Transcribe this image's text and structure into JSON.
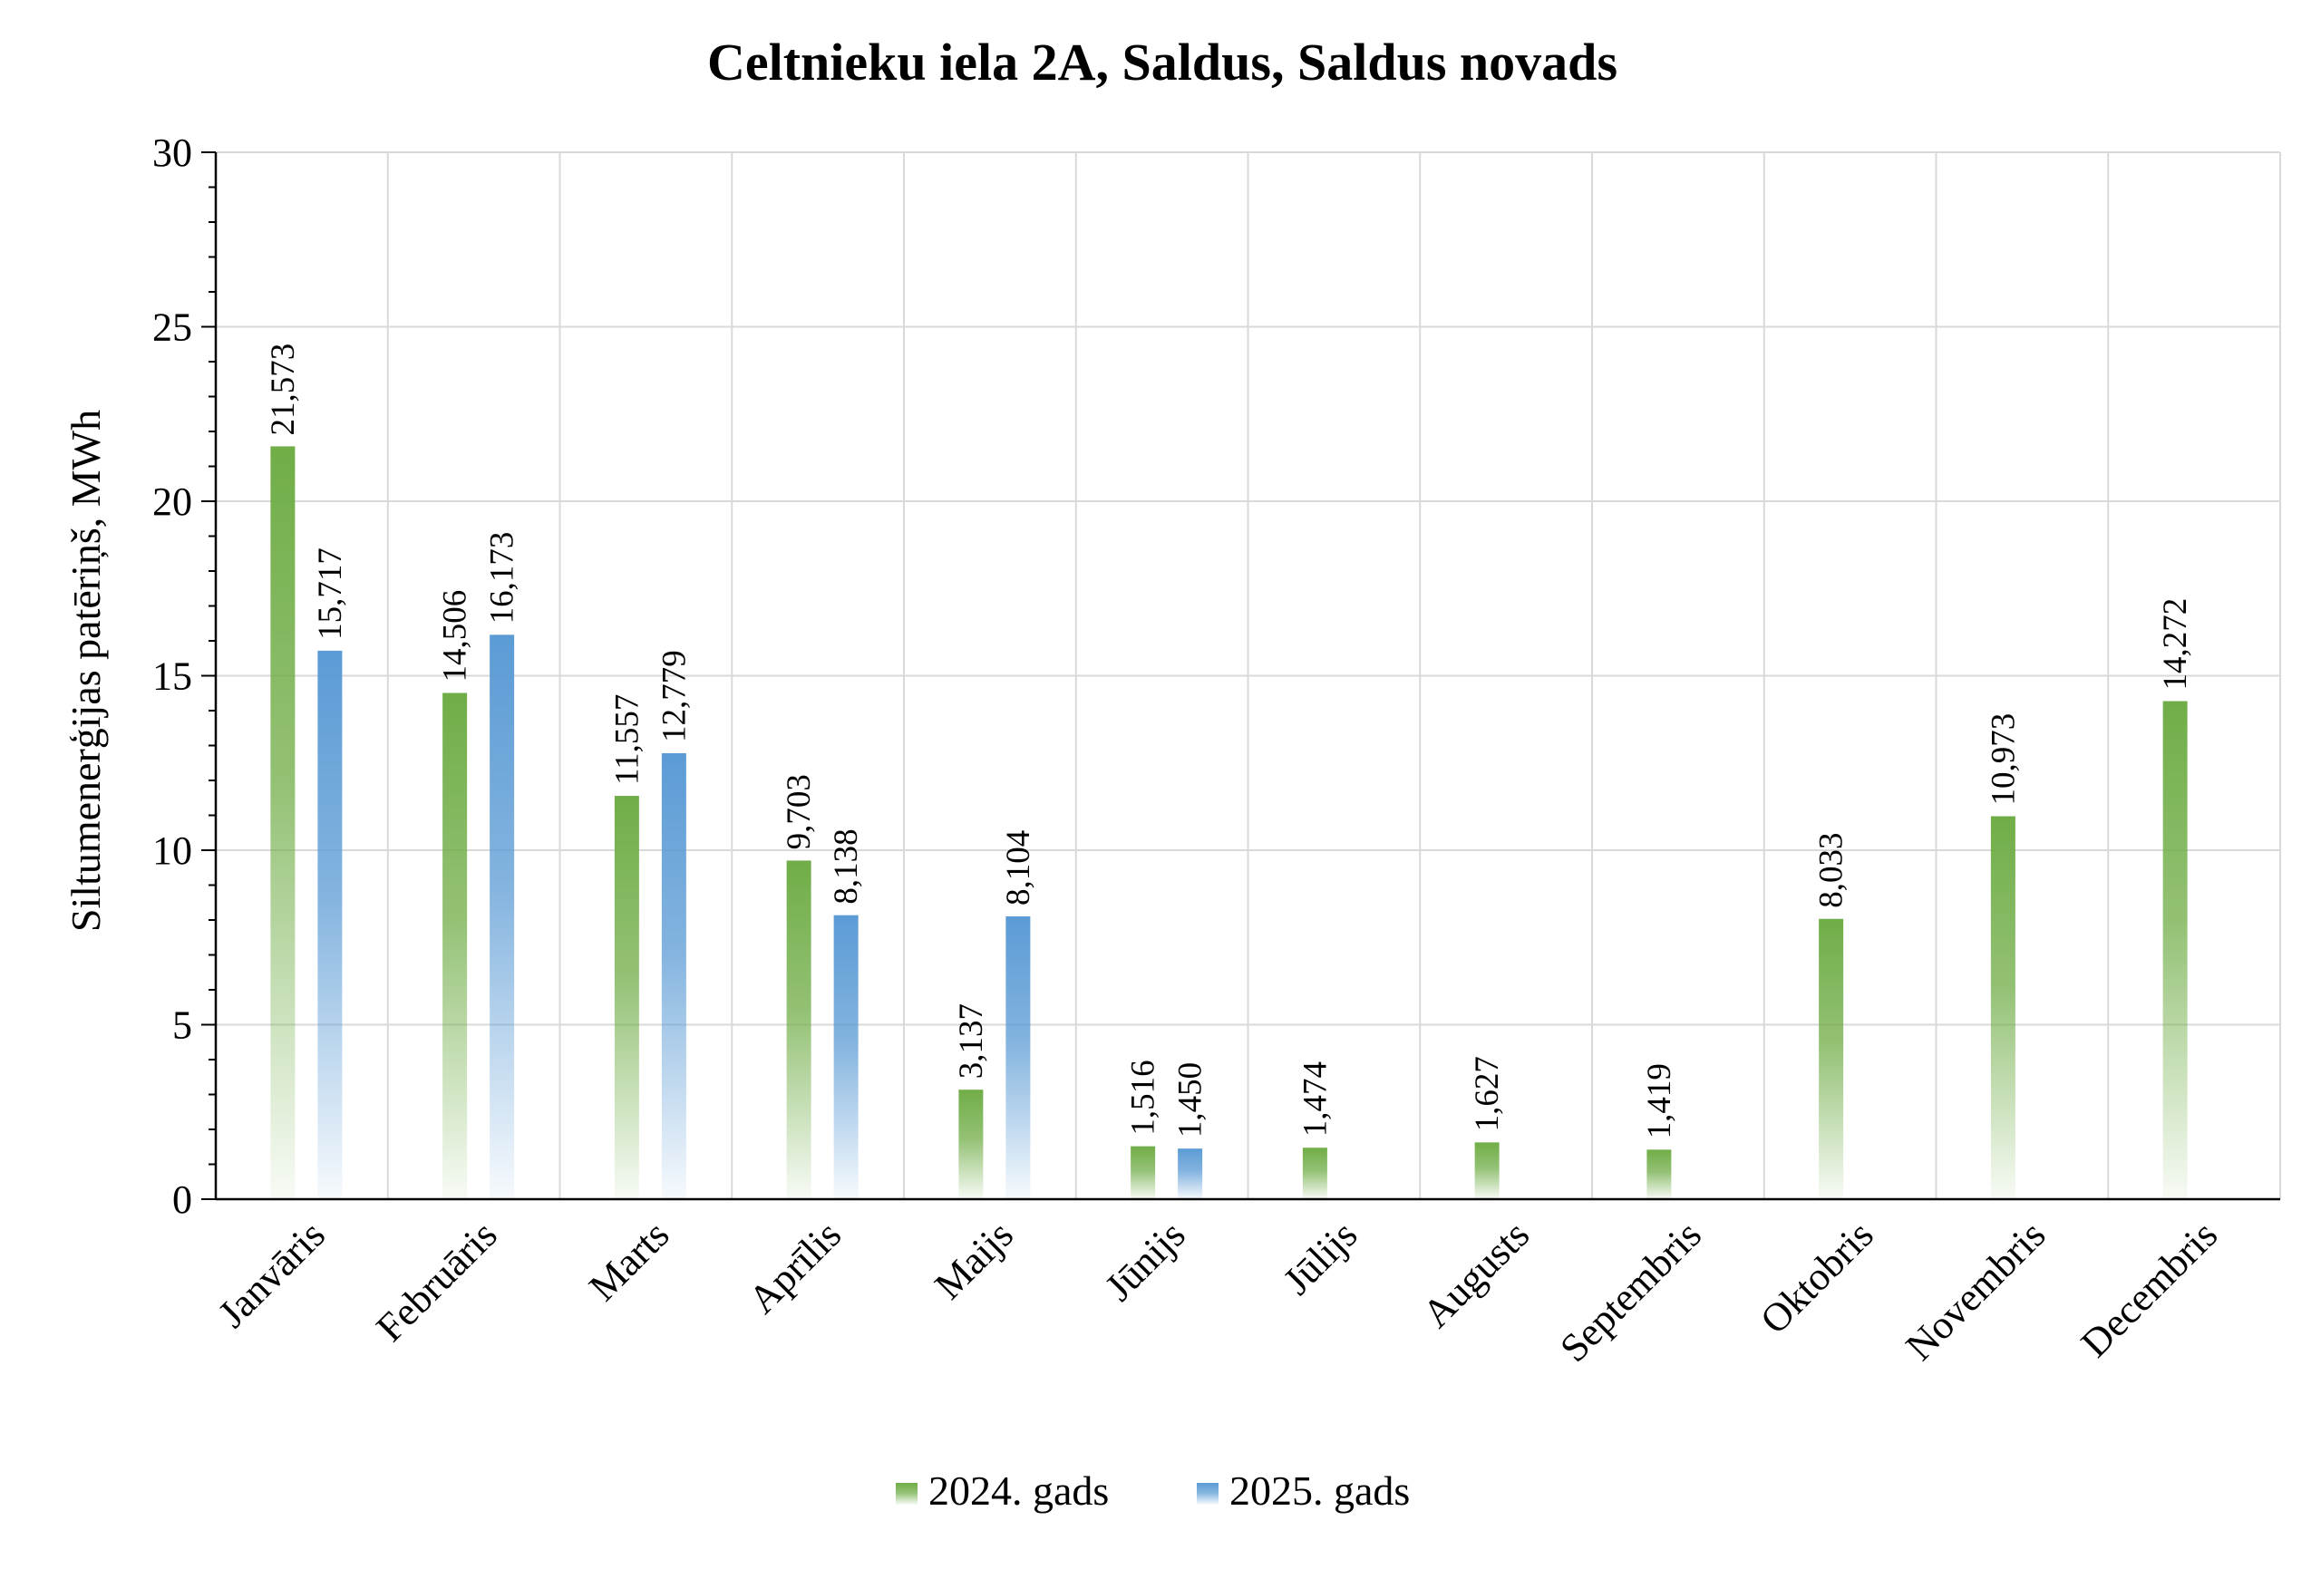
{
  "chart_data": {
    "type": "bar",
    "title": "Celtnieku iela 2A, Saldus, Saldus novads",
    "xlabel": "",
    "ylabel": "Siltumenerģijas patēriņš, MWh",
    "ylim": [
      0,
      30
    ],
    "yticks": [
      "0",
      "5",
      "10",
      "15",
      "20",
      "25",
      "30"
    ],
    "grid": true,
    "legend_position": "bottom",
    "categories": [
      "Janvāris",
      "Februāris",
      "Marts",
      "Aprīlis",
      "Maijs",
      "Jūnijs",
      "Jūlijs",
      "Augusts",
      "Septembris",
      "Oktobris",
      "Novembris",
      "Decembris"
    ],
    "series": [
      {
        "name": "2024. gads",
        "color": "#70ad47",
        "values": [
          21.573,
          14.506,
          11.557,
          9.703,
          3.137,
          1.516,
          1.474,
          1.627,
          1.419,
          8.033,
          10.973,
          14.272
        ],
        "labels": [
          "21,573",
          "14,506",
          "11,557",
          "9,703",
          "3,137",
          "1,516",
          "1,474",
          "1,627",
          "1,419",
          "8,033",
          "10,973",
          "14,272"
        ]
      },
      {
        "name": "2025. gads",
        "color": "#5b9bd5",
        "values": [
          15.717,
          16.173,
          12.779,
          8.138,
          8.104,
          1.45,
          null,
          null,
          null,
          null,
          null,
          null
        ],
        "labels": [
          "15,717",
          "16,173",
          "12,779",
          "8,138",
          "8,104",
          "1,450",
          null,
          null,
          null,
          null,
          null,
          null
        ]
      }
    ]
  }
}
